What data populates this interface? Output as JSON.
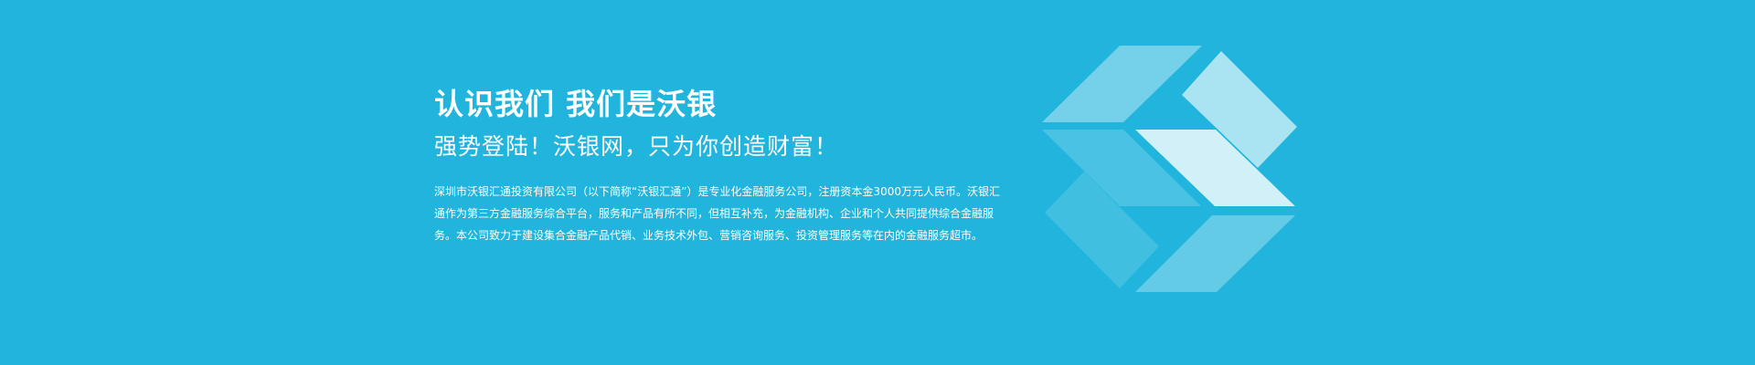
{
  "banner": {
    "heading": "认识我们 我们是沃银",
    "subheading": "强势登陆！沃银网，只为你创造财富！",
    "description": "深圳市沃银汇通投资有限公司（以下简称“沃银汇通”）是专业化金融服务公司，注册资本金3000万元人民币。沃银汇通作为第三方金融服务综合平台，服务和产品有所不同，但相互补充，为金融机构、企业和个人共同提供综合金融服务。本公司致力于建设集合金融产品代销、业务技术外包、营销咨询服务、投资管理服务等在内的金融服务超市。",
    "background_color": "#21b5dd",
    "logo_icon": "stacked-parallelogram-logo-icon"
  }
}
